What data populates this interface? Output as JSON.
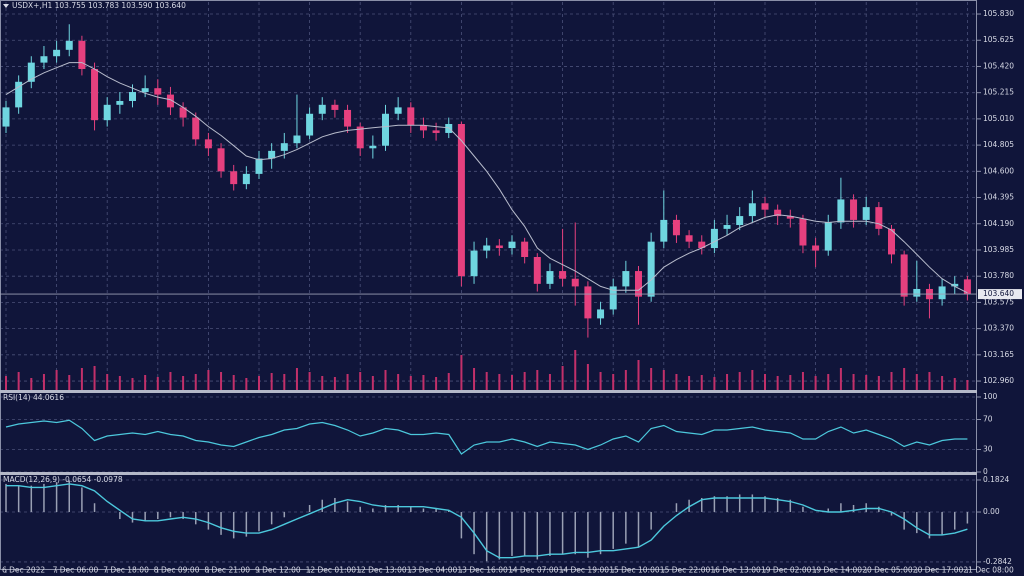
{
  "chart_data": [
    {
      "type": "candlestick",
      "title": "USDX+,H1  103.755 103.783 103.590 103.640",
      "categories": [
        "6 Dec 2022",
        null,
        null,
        null,
        "7 Dec 06:00",
        null,
        null,
        null,
        "7 Dec 18:00",
        null,
        null,
        null,
        "8 Dec 09:00",
        null,
        null,
        null,
        "8 Dec 21:00",
        null,
        null,
        null,
        "9 Dec 12:00",
        null,
        null,
        null,
        "12 Dec 01:00",
        null,
        null,
        null,
        "12 Dec 13:00",
        null,
        null,
        null,
        "13 Dec 04:00",
        null,
        null,
        null,
        "13 Dec 16:00",
        null,
        null,
        null,
        "14 Dec 07:00",
        null,
        null,
        null,
        "14 Dec 19:00",
        null,
        null,
        null,
        "15 Dec 10:00",
        null,
        null,
        null,
        "15 Dec 22:00",
        null,
        null,
        null,
        "16 Dec 13:00",
        null,
        null,
        null,
        "19 Dec 02:00",
        null,
        null,
        null,
        "19 Dec 14:00",
        null,
        null,
        null,
        "20 Dec 05:00",
        null,
        null,
        null,
        "20 Dec 17:00",
        null,
        null,
        null,
        "21 Dec 08:00"
      ],
      "open": [
        104.95,
        105.1,
        105.3,
        105.45,
        105.5,
        105.55,
        105.62,
        105.4,
        105.0,
        105.12,
        105.15,
        105.22,
        105.25,
        105.2,
        105.1,
        105.02,
        104.85,
        104.78,
        104.6,
        104.5,
        104.58,
        104.7,
        104.76,
        104.82,
        104.88,
        105.05,
        105.12,
        105.08,
        104.95,
        104.78,
        104.8,
        105.05,
        105.1,
        104.96,
        104.92,
        104.9,
        104.97,
        103.78,
        103.98,
        104.02,
        104.0,
        104.05,
        103.93,
        103.72,
        103.82,
        103.76,
        103.7,
        103.45,
        103.52,
        103.7,
        103.82,
        103.62,
        104.05,
        104.22,
        104.1,
        104.05,
        104.0,
        104.15,
        104.18,
        104.25,
        104.35,
        104.3,
        104.25,
        104.23,
        104.02,
        103.98,
        104.2,
        104.38,
        104.22,
        104.32,
        104.15,
        103.95,
        103.62,
        103.68,
        103.6,
        103.7,
        103.755
      ],
      "high": [
        105.15,
        105.35,
        105.5,
        105.58,
        105.62,
        105.75,
        105.66,
        105.45,
        105.18,
        105.22,
        105.28,
        105.35,
        105.32,
        105.26,
        105.14,
        105.06,
        104.9,
        104.82,
        104.65,
        104.64,
        104.76,
        104.82,
        104.9,
        105.2,
        105.1,
        105.18,
        105.16,
        105.12,
        104.98,
        104.88,
        105.12,
        105.18,
        105.14,
        105.02,
        104.98,
        105.02,
        104.99,
        104.05,
        104.08,
        104.07,
        104.1,
        104.08,
        103.96,
        103.88,
        104.15,
        104.2,
        103.74,
        103.58,
        103.76,
        103.9,
        103.86,
        104.12,
        104.45,
        104.26,
        104.14,
        104.1,
        104.22,
        104.26,
        104.32,
        104.45,
        104.4,
        104.34,
        104.3,
        104.26,
        104.08,
        104.26,
        104.55,
        104.42,
        104.4,
        104.36,
        104.18,
        103.98,
        103.9,
        103.72,
        103.76,
        103.78,
        103.783
      ],
      "low": [
        104.9,
        105.05,
        105.25,
        105.4,
        105.45,
        105.5,
        105.35,
        104.92,
        104.95,
        105.05,
        105.1,
        105.18,
        105.12,
        105.04,
        104.95,
        104.8,
        104.72,
        104.55,
        104.45,
        104.46,
        104.54,
        104.62,
        104.7,
        104.78,
        104.85,
        105.0,
        105.02,
        104.9,
        104.72,
        104.7,
        104.76,
        105.0,
        104.9,
        104.86,
        104.84,
        104.86,
        103.7,
        103.72,
        103.92,
        103.94,
        103.95,
        103.88,
        103.66,
        103.68,
        103.7,
        103.55,
        103.3,
        103.4,
        103.48,
        103.65,
        103.4,
        103.58,
        104.0,
        104.04,
        104.0,
        103.95,
        103.96,
        104.1,
        104.14,
        104.2,
        104.24,
        104.18,
        104.16,
        103.96,
        103.85,
        103.94,
        104.15,
        104.16,
        104.18,
        104.1,
        103.88,
        103.55,
        103.58,
        103.45,
        103.55,
        103.64,
        103.59
      ],
      "close": [
        105.1,
        105.3,
        105.45,
        105.5,
        105.55,
        105.62,
        105.4,
        105.0,
        105.12,
        105.15,
        105.22,
        105.25,
        105.2,
        105.1,
        105.02,
        104.85,
        104.78,
        104.6,
        104.5,
        104.58,
        104.7,
        104.76,
        104.82,
        104.88,
        105.05,
        105.12,
        105.08,
        104.95,
        104.78,
        104.8,
        105.05,
        105.1,
        104.96,
        104.92,
        104.9,
        104.97,
        103.78,
        103.98,
        104.02,
        104.0,
        104.05,
        103.93,
        103.72,
        103.82,
        103.76,
        103.7,
        103.45,
        103.52,
        103.7,
        103.82,
        103.62,
        104.05,
        104.22,
        104.1,
        104.05,
        104.0,
        104.15,
        104.18,
        104.25,
        104.35,
        104.3,
        104.25,
        104.23,
        104.02,
        103.98,
        104.2,
        104.38,
        104.22,
        104.32,
        104.15,
        103.95,
        103.62,
        103.68,
        103.6,
        103.7,
        103.72,
        103.64
      ],
      "ma": [
        105.2,
        105.26,
        105.32,
        105.37,
        105.41,
        105.45,
        105.45,
        105.4,
        105.34,
        105.29,
        105.25,
        105.21,
        105.18,
        105.16,
        105.1,
        105.03,
        104.95,
        104.88,
        104.8,
        104.72,
        104.69,
        104.7,
        104.73,
        104.77,
        104.82,
        104.87,
        104.9,
        104.92,
        104.93,
        104.94,
        104.95,
        104.96,
        104.96,
        104.96,
        104.95,
        104.94,
        104.84,
        104.72,
        104.6,
        104.46,
        104.3,
        104.17,
        104.0,
        103.92,
        103.87,
        103.82,
        103.76,
        103.7,
        103.67,
        103.67,
        103.67,
        103.75,
        103.85,
        103.91,
        103.96,
        104.0,
        104.05,
        104.1,
        104.16,
        104.2,
        104.24,
        104.26,
        104.25,
        104.23,
        104.21,
        104.2,
        104.21,
        104.21,
        104.21,
        104.19,
        104.14,
        104.05,
        103.95,
        103.85,
        103.76,
        103.7,
        103.65
      ],
      "ma_color": "#b8bccc",
      "up_color": "#6fd6e0",
      "down_color": "#e6407e",
      "ylim": [
        102.89,
        105.924
      ],
      "yticks": [
        {
          "value": 105.83,
          "label": "105.830"
        },
        105.625,
        {
          "value": 105.42,
          "label": "105.420"
        },
        105.215,
        {
          "value": 105.01,
          "label": "105.010"
        },
        104.805,
        {
          "value": 104.6,
          "label": "104.600"
        },
        104.395,
        {
          "value": 104.19,
          "label": "104.190"
        },
        103.985,
        {
          "value": 103.78,
          "label": "103.780"
        },
        103.575,
        {
          "value": 103.37,
          "label": "103.370"
        },
        103.165,
        {
          "value": 102.96,
          "label": "102.960"
        }
      ],
      "grid": true,
      "current": {
        "value": 103.64,
        "label": "103.640"
      }
    },
    {
      "type": "bar",
      "values": [
        14,
        18,
        12,
        16,
        20,
        15,
        22,
        24,
        16,
        14,
        12,
        15,
        13,
        18,
        14,
        16,
        20,
        18,
        15,
        12,
        14,
        17,
        16,
        22,
        18,
        14,
        13,
        16,
        18,
        14,
        20,
        16,
        14,
        15,
        13,
        17,
        35,
        22,
        18,
        16,
        15,
        18,
        20,
        16,
        24,
        40,
        26,
        18,
        16,
        20,
        30,
        22,
        20,
        16,
        14,
        15,
        13,
        16,
        18,
        20,
        16,
        14,
        15,
        18,
        14,
        16,
        22,
        16,
        15,
        14,
        18,
        22,
        16,
        18,
        14,
        12,
        10
      ],
      "color": "#c2306a",
      "ylim": [
        0,
        100
      ]
    },
    {
      "type": "line",
      "title": "RSI(14) 44.0616",
      "values": [
        60,
        64,
        66,
        68,
        66,
        69,
        58,
        42,
        48,
        50,
        52,
        50,
        54,
        50,
        48,
        42,
        40,
        36,
        34,
        40,
        46,
        50,
        56,
        58,
        64,
        66,
        62,
        56,
        48,
        52,
        58,
        56,
        50,
        50,
        52,
        50,
        24,
        36,
        40,
        40,
        44,
        40,
        34,
        40,
        38,
        36,
        30,
        36,
        44,
        48,
        40,
        58,
        62,
        54,
        52,
        50,
        56,
        56,
        58,
        60,
        56,
        54,
        52,
        44,
        44,
        54,
        60,
        52,
        56,
        50,
        44,
        34,
        40,
        36,
        42,
        44,
        44.06
      ],
      "color": "#4cc8dc",
      "ylim": [
        0,
        100
      ],
      "yticks": [
        0,
        30,
        70,
        100
      ],
      "grid": true
    },
    {
      "type": "macd",
      "title": "MACD(12,26,9) -0.0654 -0.0978",
      "values": [
        0.16,
        0.15,
        0.15,
        0.16,
        0.17,
        0.18,
        0.14,
        0.05,
        0.0,
        -0.04,
        -0.06,
        -0.05,
        -0.04,
        -0.03,
        -0.04,
        -0.07,
        -0.1,
        -0.13,
        -0.15,
        -0.14,
        -0.11,
        -0.07,
        -0.03,
        0.0,
        0.04,
        0.07,
        0.08,
        0.06,
        0.03,
        0.02,
        0.04,
        0.04,
        0.03,
        0.02,
        0.02,
        0.01,
        -0.15,
        -0.24,
        -0.28,
        -0.27,
        -0.25,
        -0.25,
        -0.27,
        -0.25,
        -0.24,
        -0.24,
        -0.26,
        -0.24,
        -0.21,
        -0.18,
        -0.2,
        -0.1,
        0.0,
        0.05,
        0.07,
        0.08,
        0.09,
        0.09,
        0.1,
        0.1,
        0.09,
        0.08,
        0.07,
        0.03,
        0.0,
        0.02,
        0.05,
        0.04,
        0.05,
        0.03,
        -0.02,
        -0.1,
        -0.12,
        -0.15,
        -0.13,
        -0.1,
        -0.0654
      ],
      "signal": [
        0.15,
        0.15,
        0.14,
        0.14,
        0.15,
        0.16,
        0.15,
        0.12,
        0.06,
        0.01,
        -0.04,
        -0.05,
        -0.05,
        -0.04,
        -0.03,
        -0.04,
        -0.06,
        -0.09,
        -0.11,
        -0.12,
        -0.12,
        -0.1,
        -0.07,
        -0.04,
        -0.01,
        0.02,
        0.05,
        0.07,
        0.06,
        0.04,
        0.03,
        0.03,
        0.03,
        0.03,
        0.02,
        0.01,
        -0.03,
        -0.12,
        -0.22,
        -0.26,
        -0.26,
        -0.25,
        -0.25,
        -0.24,
        -0.24,
        -0.23,
        -0.23,
        -0.22,
        -0.22,
        -0.21,
        -0.2,
        -0.16,
        -0.08,
        -0.02,
        0.03,
        0.07,
        0.08,
        0.08,
        0.08,
        0.08,
        0.08,
        0.07,
        0.06,
        0.04,
        0.01,
        0.0,
        0.0,
        0.01,
        0.02,
        0.02,
        0.0,
        -0.04,
        -0.09,
        -0.13,
        -0.13,
        -0.12,
        -0.0978
      ],
      "color": "#9aa0b4",
      "signal_color": "#4cc8dc",
      "ylim": [
        -0.33,
        0.205
      ],
      "yticks": [
        0.1824,
        {
          "value": 0,
          "label": "0.00"
        },
        -0.2842
      ],
      "grid": true
    }
  ]
}
